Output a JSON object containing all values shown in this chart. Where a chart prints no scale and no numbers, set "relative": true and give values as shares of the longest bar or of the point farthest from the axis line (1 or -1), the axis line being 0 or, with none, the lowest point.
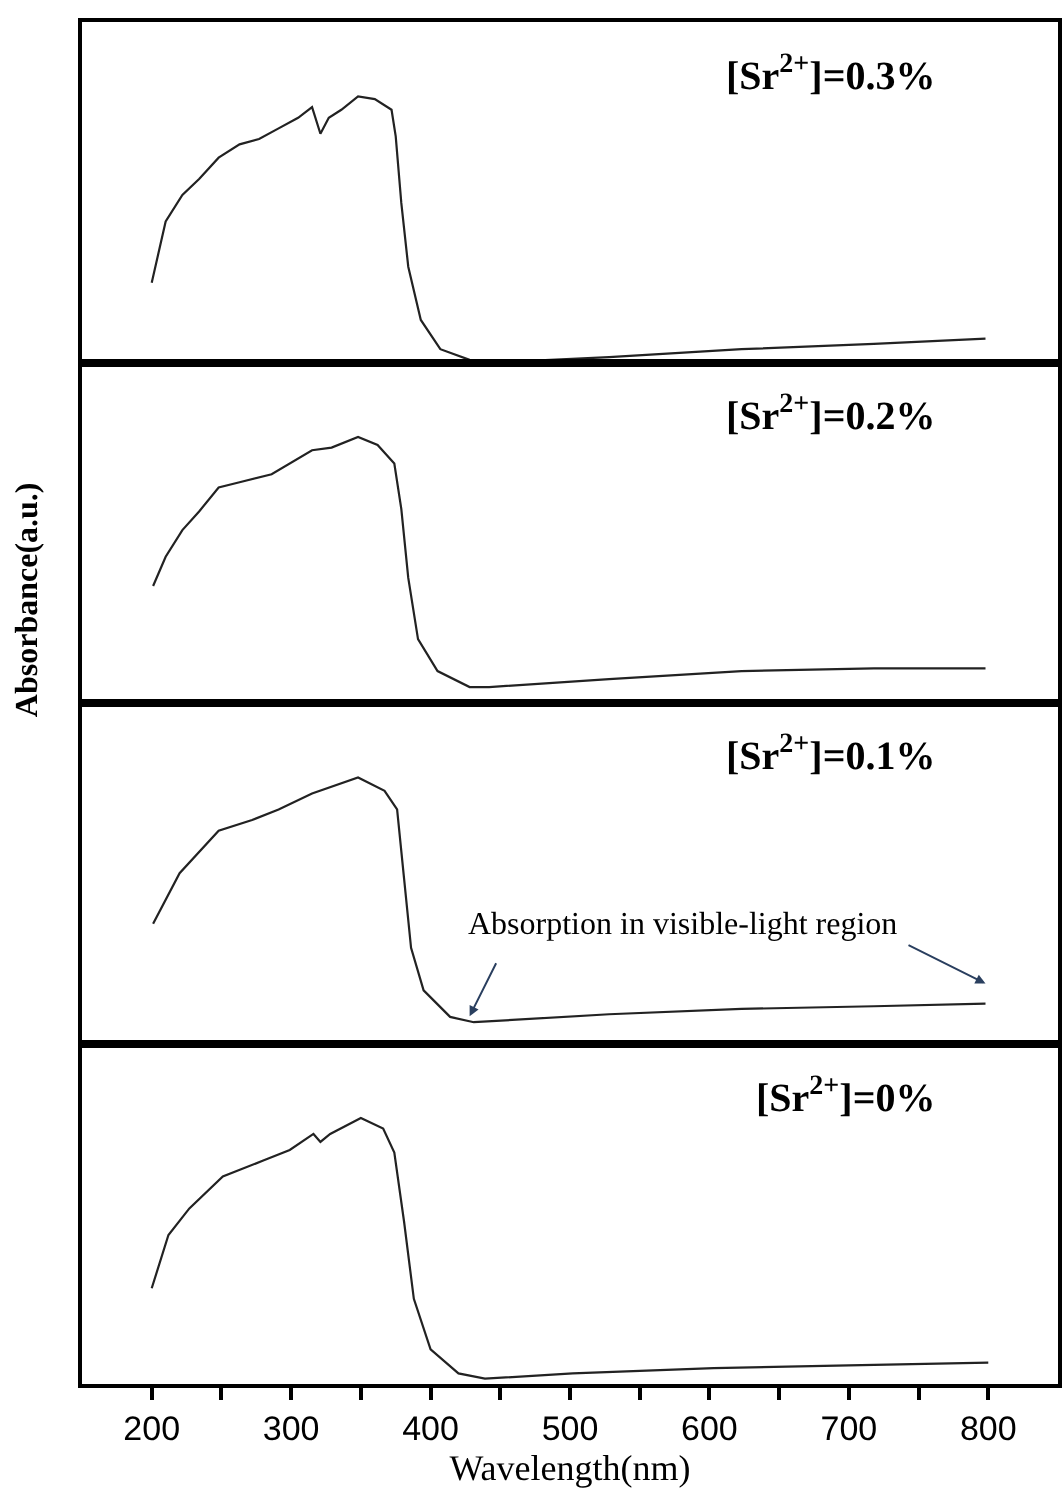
{
  "chart_data": [
    {
      "type": "line",
      "title": "[Sr$^{2+}$]=0.3%",
      "relative": true,
      "xlim": [
        150,
        850
      ],
      "tick_labels": false,
      "series": [
        {
          "color": "#222222",
          "x": [
            200,
            210,
            222,
            234,
            248,
            263,
            277,
            291,
            305,
            315,
            321,
            327,
            336,
            348,
            360,
            372,
            375,
            379,
            384,
            393,
            407,
            428,
            447,
            528,
            623,
            718,
            798
          ],
          "values": [
            0.3,
            0.53,
            0.63,
            0.69,
            0.77,
            0.82,
            0.84,
            0.88,
            0.92,
            0.96,
            0.86,
            0.92,
            0.95,
            1.0,
            0.99,
            0.95,
            0.85,
            0.6,
            0.36,
            0.16,
            0.05,
            0.01,
            0.0,
            0.02,
            0.05,
            0.07,
            0.09
          ]
        }
      ]
    },
    {
      "type": "line",
      "title": "[Sr$^{2+}$]=0.2%",
      "ylabel": "Absorbance(a.u.)",
      "relative": true,
      "xlim": [
        150,
        850
      ],
      "tick_labels": false,
      "series": [
        {
          "color": "#222222",
          "x": [
            201,
            210,
            222,
            234,
            248,
            263,
            286,
            315,
            329,
            348,
            362,
            374,
            379,
            384,
            391,
            405,
            428,
            442,
            528,
            623,
            718,
            798
          ],
          "values": [
            0.44,
            0.55,
            0.65,
            0.72,
            0.81,
            0.83,
            0.86,
            0.95,
            0.96,
            1.0,
            0.97,
            0.9,
            0.73,
            0.47,
            0.24,
            0.12,
            0.06,
            0.06,
            0.09,
            0.12,
            0.13,
            0.13
          ]
        }
      ]
    },
    {
      "type": "line",
      "title": "[Sr$^{2+}$]=0.1%",
      "relative": true,
      "xlim": [
        150,
        850
      ],
      "tick_labels": false,
      "annotations": [
        {
          "text": "Absorption in visible-light region",
          "x": 428,
          "y": 0.08
        }
      ],
      "series": [
        {
          "color": "#222222",
          "x": [
            201,
            220,
            248,
            272,
            291,
            315,
            348,
            367,
            376,
            381,
            386,
            395,
            414,
            431,
            528,
            623,
            718,
            798
          ],
          "values": [
            0.45,
            0.64,
            0.8,
            0.84,
            0.88,
            0.94,
            1.0,
            0.95,
            0.88,
            0.62,
            0.36,
            0.2,
            0.1,
            0.08,
            0.11,
            0.13,
            0.14,
            0.15
          ]
        }
      ]
    },
    {
      "type": "line",
      "title": "[Sr$^{2+}$]=0%",
      "xlabel": "Wavelength(nm)",
      "relative": true,
      "xlim": [
        150,
        850
      ],
      "tick_labels": "x",
      "xticks": [
        200,
        {
          "value": 250,
          "label": null
        },
        300,
        {
          "value": 350,
          "label": null
        },
        400,
        {
          "value": 450,
          "label": null
        },
        500,
        {
          "value": 550,
          "label": null
        },
        600,
        {
          "value": 650,
          "label": null
        },
        700,
        {
          "value": 750,
          "label": null
        },
        800
      ],
      "series": [
        {
          "color": "#222222",
          "x": [
            200,
            212,
            227,
            251,
            280,
            299,
            316,
            321,
            328,
            350,
            366,
            374,
            381,
            388,
            400,
            420,
            439,
            502,
            603,
            700,
            800
          ],
          "values": [
            0.36,
            0.56,
            0.66,
            0.78,
            0.84,
            0.88,
            0.94,
            0.91,
            0.94,
            1.0,
            0.96,
            0.87,
            0.61,
            0.32,
            0.13,
            0.04,
            0.02,
            0.04,
            0.06,
            0.07,
            0.08
          ]
        }
      ]
    }
  ]
}
